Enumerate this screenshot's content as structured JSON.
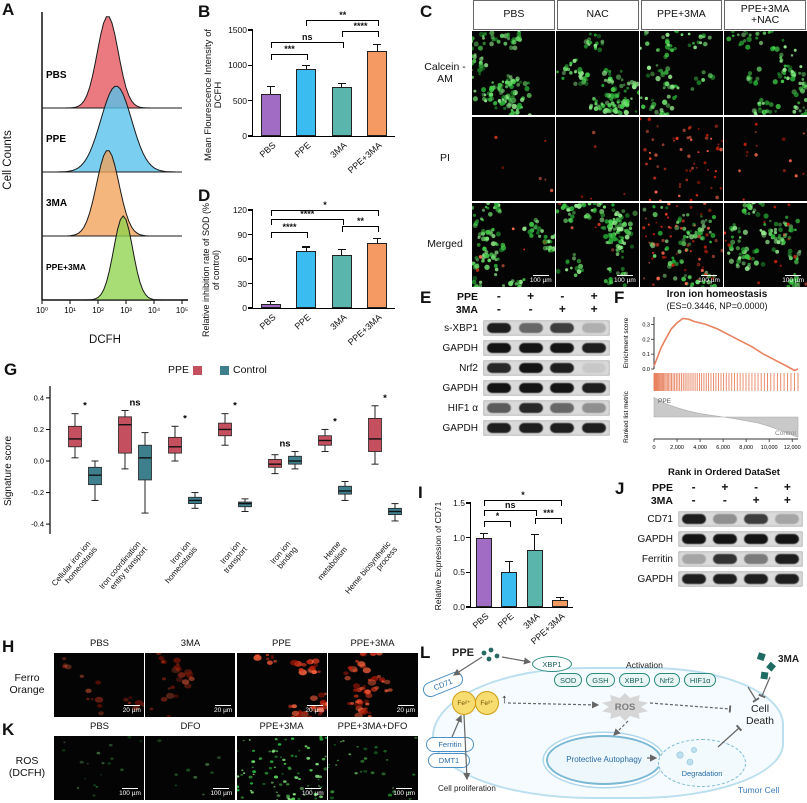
{
  "panels": {
    "A": {
      "label": "A",
      "ylabel": "Cell Counts",
      "xlabel": "DCFH",
      "xticks": [
        "10⁰",
        "10¹",
        "10²",
        "10³",
        "10⁴",
        "10⁵"
      ],
      "traces": [
        {
          "name": "PBS",
          "color": "#e4555c",
          "center": 0.47,
          "width": 0.075,
          "amp": 92
        },
        {
          "name": "PPE",
          "color": "#55c1ec",
          "center": 0.53,
          "width": 0.11,
          "amp": 86
        },
        {
          "name": "3MA",
          "color": "#f2a258",
          "center": 0.47,
          "width": 0.08,
          "amp": 86
        },
        {
          "name": "PPE+3MA",
          "color": "#8fd24d",
          "center": 0.58,
          "width": 0.068,
          "amp": 84
        }
      ]
    },
    "B": {
      "label": "B",
      "chart": {
        "type": "bar",
        "ylabel": "Mean Flourescence Intensity of DCFH",
        "categories": [
          "PBS",
          "PPE",
          "3MA",
          "PPE+3MA"
        ],
        "values": [
          600,
          950,
          700,
          1200
        ],
        "errors": [
          90,
          40,
          40,
          90
        ],
        "colors": [
          "#a06cc4",
          "#3bbcf0",
          "#5ab5ad",
          "#f59a62"
        ],
        "ylim": [
          0,
          1500
        ],
        "yticks": [
          {
            "v": 0,
            "t": "0"
          },
          {
            "v": 500,
            "t": "500"
          },
          {
            "v": 1000,
            "t": "1000"
          },
          {
            "v": 1500,
            "t": "1500"
          }
        ],
        "sig": [
          {
            "from": 0,
            "to": 1,
            "label": "***",
            "y": 1080
          },
          {
            "from": 0,
            "to": 2,
            "label": "ns",
            "y": 1240
          },
          {
            "from": 2,
            "to": 3,
            "label": "****",
            "y": 1400
          },
          {
            "from": 1,
            "to": 3,
            "label": "**",
            "y": 1560
          }
        ]
      }
    },
    "C": {
      "label": "C",
      "columns": [
        "PBS",
        "NAC",
        "PPE+3MA",
        "PPE+3MA +NAC"
      ],
      "rows": [
        "Calcein -AM",
        "PI",
        "Merged"
      ],
      "scale_label": "100 µm",
      "green_density": [
        150,
        150,
        90,
        130
      ],
      "red_density": [
        6,
        5,
        60,
        15
      ]
    },
    "D": {
      "label": "D",
      "chart": {
        "type": "bar",
        "ylabel": "Relative inhibition rate of SOD (% of control)",
        "categories": [
          "PBS",
          "PPE",
          "3MA",
          "PPE+3MA"
        ],
        "values": [
          5,
          70,
          65,
          80
        ],
        "errors": [
          2,
          4,
          6,
          4
        ],
        "colors": [
          "#a06cc4",
          "#3bbcf0",
          "#5ab5ad",
          "#f59a62"
        ],
        "ylim": [
          0,
          120
        ],
        "yticks": [
          {
            "v": 0,
            "t": "0"
          },
          {
            "v": 30,
            "t": "30"
          },
          {
            "v": 60,
            "t": "60"
          },
          {
            "v": 90,
            "t": "90"
          },
          {
            "v": 120,
            "t": "120"
          }
        ],
        "sig": [
          {
            "from": 0,
            "to": 1,
            "label": "****",
            "y": 86
          },
          {
            "from": 2,
            "to": 3,
            "label": "**",
            "y": 93
          },
          {
            "from": 0,
            "to": 2,
            "label": "****",
            "y": 102
          },
          {
            "from": 0,
            "to": 3,
            "label": "*",
            "y": 113
          }
        ]
      }
    },
    "E": {
      "label": "E",
      "header": [
        {
          "name": "PPE",
          "marks": [
            "-",
            "+",
            "-",
            "+"
          ]
        },
        {
          "name": "3MA",
          "marks": [
            "-",
            "-",
            "+",
            "+"
          ]
        }
      ],
      "rows": [
        {
          "name": "s-XBP1",
          "bands": [
            0.9,
            0.55,
            0.75,
            0.2
          ]
        },
        {
          "name": "GAPDH",
          "bands": [
            0.95,
            0.95,
            0.95,
            0.9
          ]
        },
        {
          "name": "Nrf2",
          "bands": [
            0.85,
            0.95,
            0.9,
            0.08
          ]
        },
        {
          "name": "GAPDH",
          "bands": [
            0.95,
            0.95,
            0.95,
            0.9
          ]
        },
        {
          "name": "HIF1 α",
          "bands": [
            0.6,
            0.85,
            0.55,
            0.35
          ]
        },
        {
          "name": "GAPDH",
          "bands": [
            0.9,
            0.9,
            0.9,
            0.9
          ]
        }
      ]
    },
    "F": {
      "label": "F",
      "title": "Iron ion homeostasis",
      "subtitle": "(ES=0.3446, NP=0.0000)",
      "ylabel_top": "Enrichment score",
      "ylabel_bottom": "Ranked list metric",
      "xlabel": "Rank in Ordered DataSet",
      "series_labels": {
        "pos": "PPE",
        "neg": "Control"
      },
      "chart": {
        "type": "line",
        "es_max": 0.35,
        "es_yticks": [
          0.0,
          0.1,
          0.2,
          0.3
        ],
        "es_curve": [
          [
            0,
            0.02
          ],
          [
            300,
            0.08
          ],
          [
            600,
            0.14
          ],
          [
            1000,
            0.2
          ],
          [
            1500,
            0.27
          ],
          [
            2000,
            0.31
          ],
          [
            2500,
            0.34
          ],
          [
            3000,
            0.335
          ],
          [
            3500,
            0.32
          ],
          [
            4500,
            0.3
          ],
          [
            5500,
            0.27
          ],
          [
            6500,
            0.23
          ],
          [
            7500,
            0.19
          ],
          [
            8500,
            0.15
          ],
          [
            9500,
            0.1
          ],
          [
            10500,
            0.06
          ],
          [
            11500,
            0.02
          ],
          [
            12200,
            -0.01
          ],
          [
            12500,
            0
          ]
        ],
        "metric_curve": [
          [
            0,
            2.3
          ],
          [
            1000,
            1.6
          ],
          [
            2000,
            1.1
          ],
          [
            3000,
            0.7
          ],
          [
            4000,
            0.4
          ],
          [
            5000,
            0.2
          ],
          [
            6000,
            0
          ],
          [
            7000,
            -0.2
          ],
          [
            8000,
            -0.45
          ],
          [
            9000,
            -0.7
          ],
          [
            10000,
            -1.1
          ],
          [
            11000,
            -1.6
          ],
          [
            12500,
            -2.4
          ]
        ],
        "metric_range": [
          -2.6,
          2.6
        ],
        "xmax": 12500,
        "xticks": [
          {
            "v": 0,
            "t": "0"
          },
          {
            "v": 2000,
            "t": "2,000"
          },
          {
            "v": 4000,
            "t": "4,000"
          },
          {
            "v": 6000,
            "t": "6,000"
          },
          {
            "v": 8000,
            "t": "8,000"
          },
          {
            "v": 10000,
            "t": "10,000"
          },
          {
            "v": 12000,
            "t": "12,000"
          }
        ],
        "barcode": {
          "count": 70,
          "skew": 1.7
        }
      }
    },
    "G": {
      "label": "G",
      "ylabel": "Signature score",
      "legend": [
        {
          "name": "PPE",
          "color": "#c44f5e"
        },
        {
          "name": "Control",
          "color": "#3e7f8e"
        }
      ],
      "ylim": [
        -0.45,
        0.45
      ],
      "yticks": [
        {
          "v": -0.4,
          "t": "-0.4"
        },
        {
          "v": -0.2,
          "t": "-0.2"
        },
        {
          "v": 0,
          "t": "0.0"
        },
        {
          "v": 0.2,
          "t": "0.2"
        },
        {
          "v": 0.4,
          "t": "0.4"
        }
      ],
      "groups": [
        {
          "lines": [
            "Cellular iron ion",
            "homeostasis"
          ],
          "sig": "*",
          "ppe": [
            0.02,
            0.09,
            0.14,
            0.22,
            0.3
          ],
          "control": [
            -0.25,
            -0.15,
            -0.09,
            -0.04,
            0
          ]
        },
        {
          "lines": [
            "Iron coordination",
            "entity transport"
          ],
          "sig": "ns",
          "ppe": [
            -0.05,
            0.05,
            0.23,
            0.28,
            0.32
          ],
          "control": [
            -0.33,
            -0.12,
            0.02,
            0.1,
            0.18
          ]
        },
        {
          "lines": [
            "Iron ion",
            "homeostasis"
          ],
          "sig": "*",
          "ppe": [
            0,
            0.05,
            0.09,
            0.15,
            0.22
          ],
          "control": [
            -0.3,
            -0.27,
            -0.25,
            -0.23,
            -0.2
          ]
        },
        {
          "lines": [
            "Iron ion",
            "transport"
          ],
          "sig": "*",
          "ppe": [
            0.1,
            0.16,
            0.2,
            0.24,
            0.3
          ],
          "control": [
            -0.32,
            -0.29,
            -0.27,
            -0.26,
            -0.24
          ]
        },
        {
          "lines": [
            "Iron ion",
            "binding"
          ],
          "sig": "ns",
          "ppe": [
            -0.08,
            -0.04,
            -0.02,
            0.01,
            0.04
          ],
          "control": [
            -0.05,
            -0.02,
            0,
            0.03,
            0.06
          ]
        },
        {
          "lines": [
            "Heme",
            "metabolism"
          ],
          "sig": "*",
          "ppe": [
            0.06,
            0.1,
            0.13,
            0.16,
            0.2
          ],
          "control": [
            -0.25,
            -0.21,
            -0.19,
            -0.16,
            -0.13
          ]
        },
        {
          "lines": [
            "Heme biosynthetic",
            "process"
          ],
          "sig": "*",
          "ppe": [
            -0.02,
            0.06,
            0.14,
            0.27,
            0.35
          ],
          "control": [
            -0.38,
            -0.34,
            -0.32,
            -0.3,
            -0.27
          ]
        }
      ]
    },
    "H": {
      "label": "H",
      "row_label": "Ferro Orange",
      "columns": [
        "PBS",
        "3MA",
        "PPE",
        "PPE+3MA"
      ],
      "scale_label": "20 µm",
      "density": [
        18,
        25,
        70,
        55
      ],
      "intensity": [
        0.5,
        0.55,
        0.95,
        0.85
      ]
    },
    "I": {
      "label": "I",
      "chart": {
        "type": "bar",
        "ylabel": "Relative Expression of CD71",
        "categories": [
          "PBS",
          "PPE",
          "3MA",
          "PPE+3MA"
        ],
        "values": [
          1.0,
          0.5,
          0.82,
          0.1
        ],
        "errors": [
          0.05,
          0.15,
          0.22,
          0.03
        ],
        "colors": [
          "#a06cc4",
          "#3bbcf0",
          "#5ab5ad",
          "#f59a62"
        ],
        "ylim": [
          0,
          1.5
        ],
        "yticks": [
          {
            "v": 0,
            "t": "0.0"
          },
          {
            "v": 0.5,
            "t": "0.5"
          },
          {
            "v": 1,
            "t": "1.0"
          },
          {
            "v": 1.5,
            "t": "1.5"
          }
        ],
        "sig": [
          {
            "from": 0,
            "to": 1,
            "label": "*",
            "y": 1.15
          },
          {
            "from": 2,
            "to": 3,
            "label": "***",
            "y": 1.2
          },
          {
            "from": 0,
            "to": 2,
            "label": "ns",
            "y": 1.31
          },
          {
            "from": 0,
            "to": 3,
            "label": "*",
            "y": 1.45
          }
        ]
      }
    },
    "J": {
      "label": "J",
      "header": [
        {
          "name": "PPE",
          "marks": [
            "-",
            "+",
            "-",
            "+"
          ]
        },
        {
          "name": "3MA",
          "marks": [
            "-",
            "-",
            "+",
            "+"
          ]
        }
      ],
      "rows": [
        {
          "name": "CD71",
          "bands": [
            0.9,
            0.35,
            0.75,
            0.25
          ]
        },
        {
          "name": "GAPDH",
          "bands": [
            0.95,
            0.95,
            0.95,
            0.95
          ]
        },
        {
          "name": "Ferritin",
          "bands": [
            0.25,
            0.8,
            0.45,
            0.9
          ]
        },
        {
          "name": "GAPDH",
          "bands": [
            0.9,
            0.9,
            0.9,
            0.9
          ]
        }
      ]
    },
    "K": {
      "label": "K",
      "row_label": "ROS (DCFH)",
      "columns": [
        "PBS",
        "DFO",
        "PPE+3MA",
        "PPE+3MA+DFO"
      ],
      "scale_label": "100 µm",
      "density": [
        18,
        10,
        90,
        30
      ],
      "intensity": [
        0.5,
        0.45,
        0.95,
        0.7
      ]
    },
    "L": {
      "label": "L",
      "ppe": "PPE",
      "three_ma": "3MA",
      "cd71": "CD71",
      "xbp1": "XBP1",
      "activation": "Activation",
      "pills": [
        "SOD",
        "GSH",
        "XBP1",
        "Nrf2",
        "HIF1α"
      ],
      "fe": "Fe²⁺",
      "up_arrow": "↑",
      "ferritin": "Ferritin",
      "dmt1": "DMT1",
      "ros": "ROS",
      "autophagy": "Protective Autophagy",
      "degradation": "Degradation",
      "cell_death": "Cell Death",
      "cell_proliferation": "Cell proliferation",
      "tumor_cell": "Tumor Cell"
    }
  }
}
